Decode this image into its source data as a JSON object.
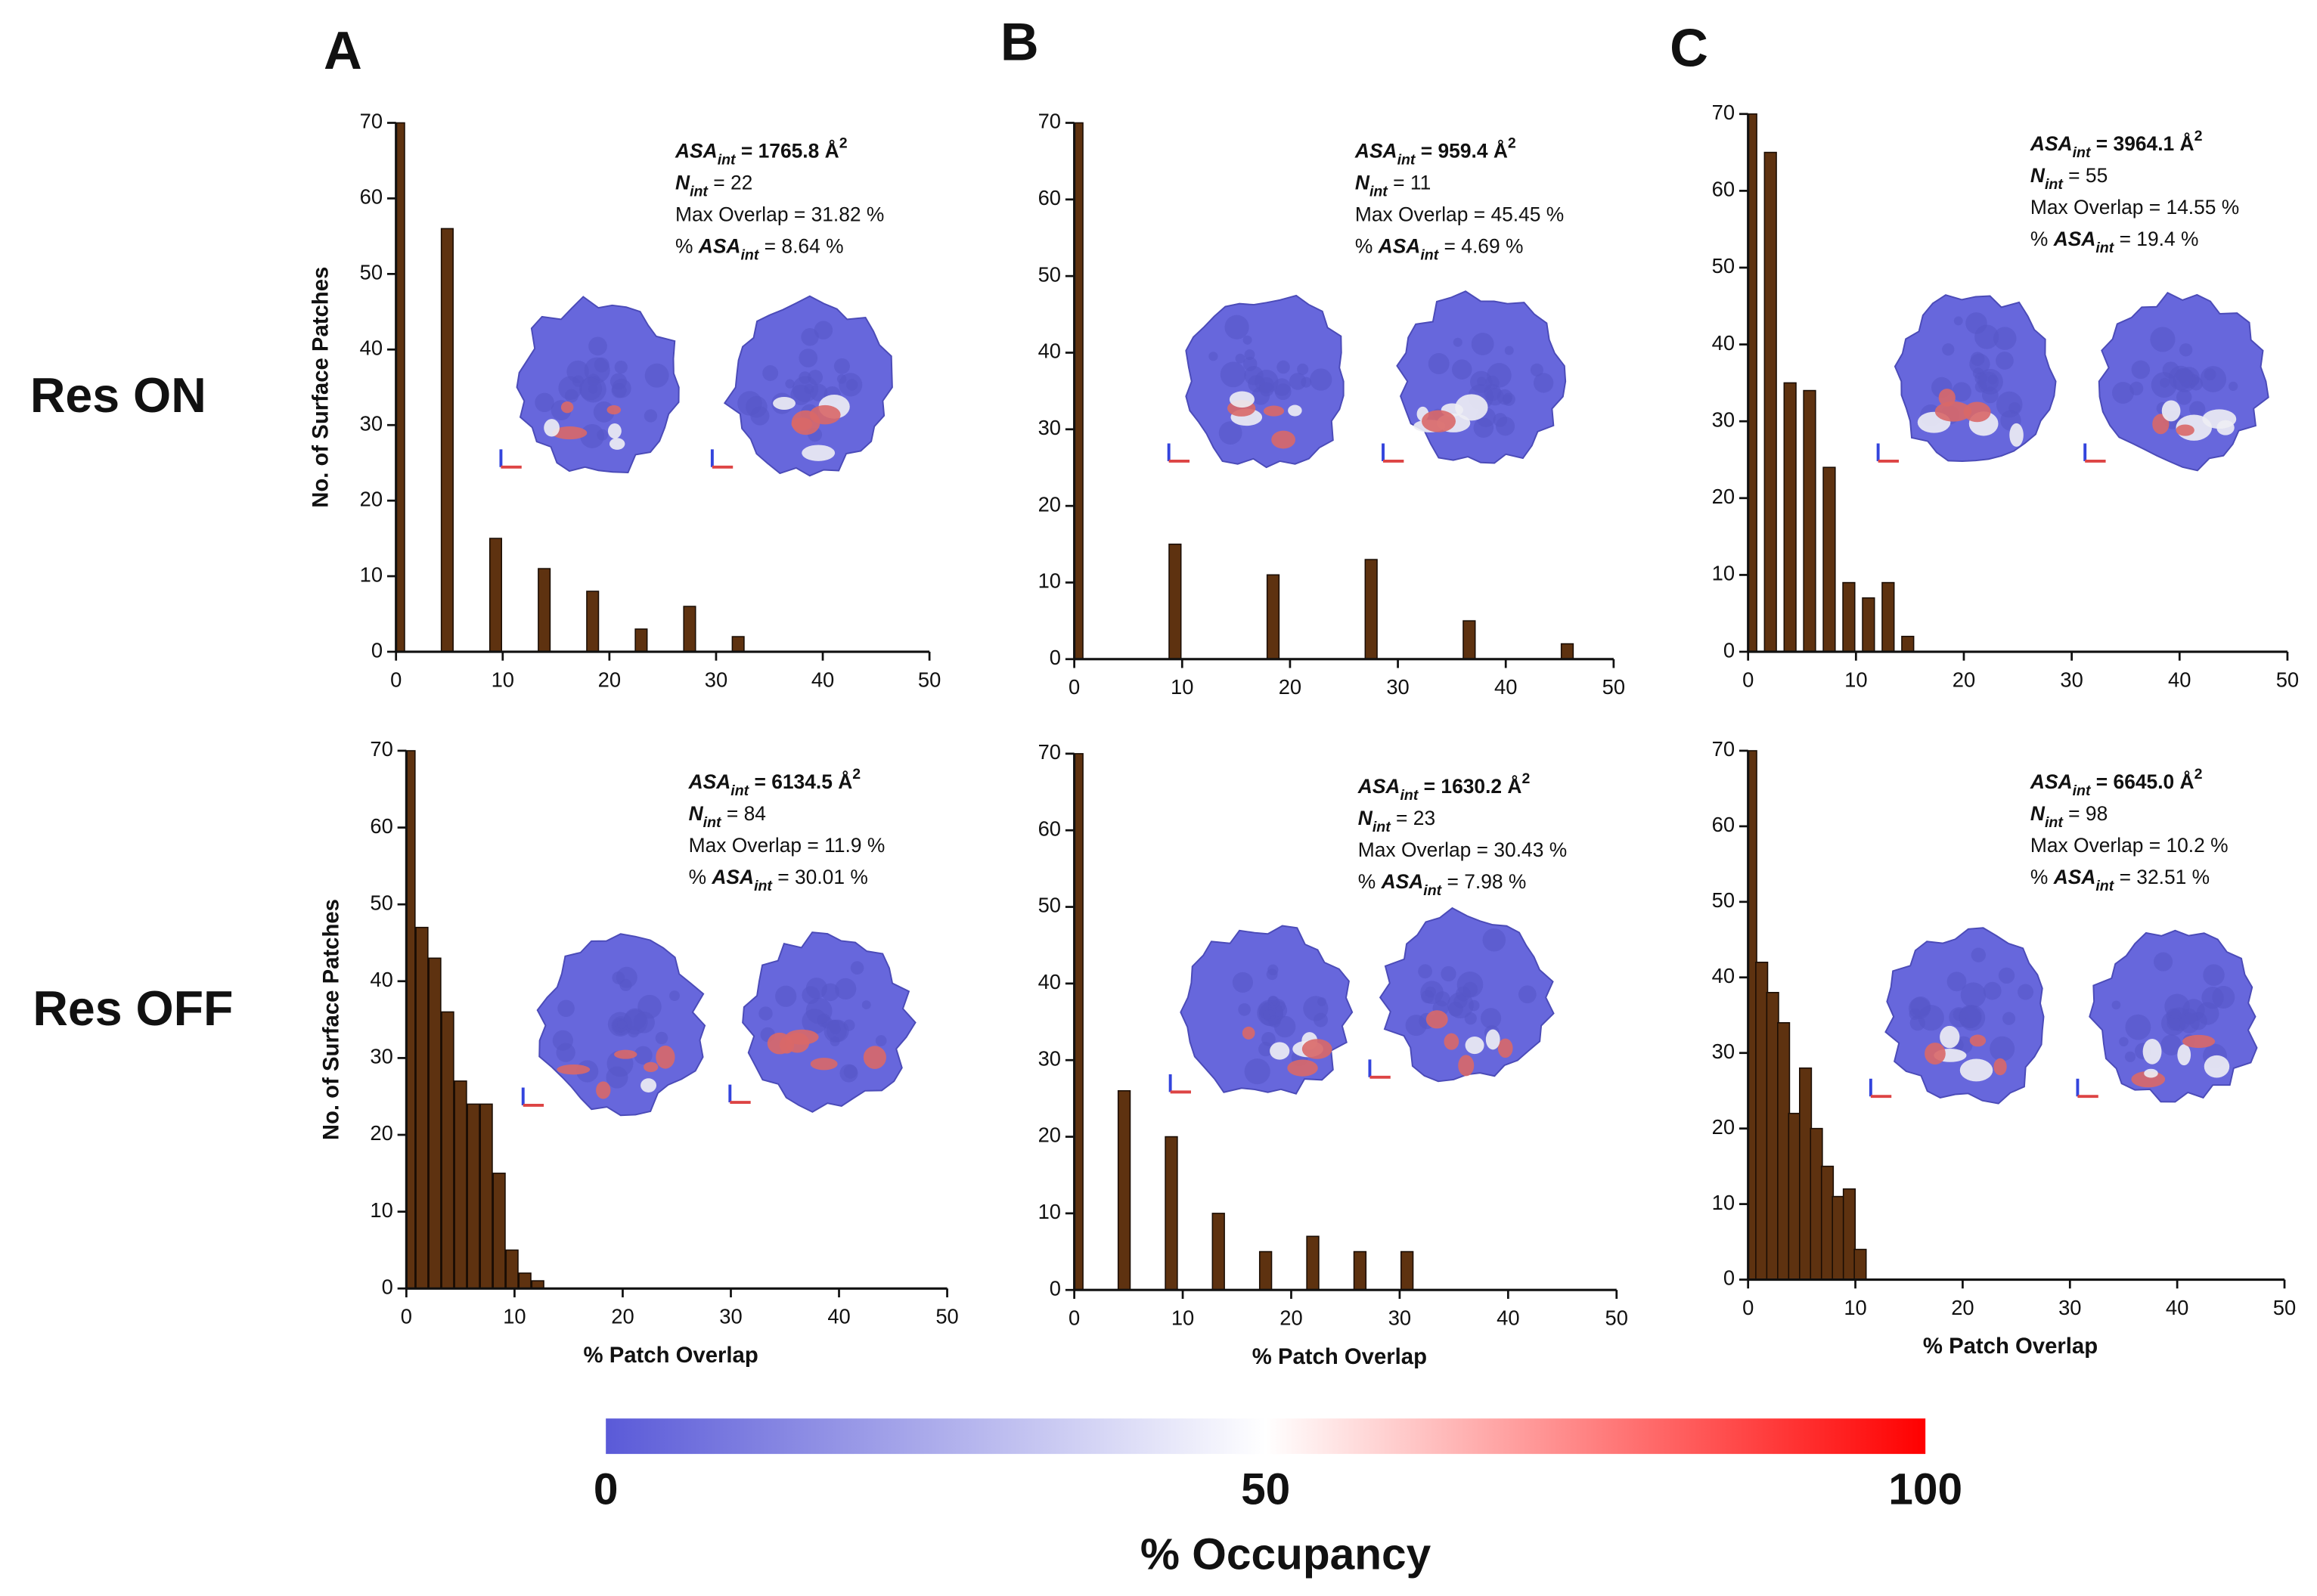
{
  "panel_labels": [
    "A",
    "B",
    "C"
  ],
  "row_labels": [
    "Res ON",
    "Res OFF"
  ],
  "chart_data": [
    {
      "type": "bar",
      "x": [
        0,
        4.55,
        9.09,
        13.64,
        18.18,
        22.73,
        27.27,
        31.82
      ],
      "values": [
        70,
        56,
        15,
        11,
        8,
        3,
        6,
        2
      ],
      "color": "#5e3210",
      "xlim": [
        0,
        50
      ],
      "ylim": [
        0,
        70
      ],
      "xticks": [
        0,
        10,
        20,
        30,
        40,
        50
      ],
      "yticks": [
        0,
        10,
        20,
        30,
        40,
        50,
        60,
        70
      ],
      "ylabel": "No. of Surface Patches",
      "annotation": [
        [
          {
            "text": "ASA",
            "italic": true
          },
          {
            "text": "int",
            "sub": true,
            "italic": true
          },
          {
            "text": " = 1765.8 "
          },
          {
            "text": "Å"
          },
          {
            "text": "2",
            "sup": true
          }
        ],
        [
          {
            "text": "N",
            "italic": true
          },
          {
            "text": "int",
            "sub": true,
            "italic": true
          },
          {
            "text": " = 22",
            "plain": true
          }
        ],
        [
          {
            "text": "Max Overlap = 31.82 %",
            "plain": true
          }
        ],
        [
          {
            "text": "% ",
            "plain": true
          },
          {
            "text": "ASA",
            "italic": true
          },
          {
            "text": "int",
            "sub": true,
            "italic": true
          },
          {
            "text": " = 8.64 %",
            "plain": true
          }
        ]
      ]
    },
    {
      "type": "bar",
      "x": [
        0,
        9.09,
        18.18,
        27.27,
        36.36,
        45.45
      ],
      "values": [
        70,
        15,
        11,
        13,
        5,
        2
      ],
      "color": "#5e3210",
      "xlim": [
        0,
        50
      ],
      "ylim": [
        0,
        70
      ],
      "xticks": [
        0,
        10,
        20,
        30,
        40,
        50
      ],
      "yticks": [
        0,
        10,
        20,
        30,
        40,
        50,
        60,
        70
      ],
      "annotation": [
        [
          {
            "text": "ASA",
            "italic": true
          },
          {
            "text": "int",
            "sub": true,
            "italic": true
          },
          {
            "text": " = 959.4 "
          },
          {
            "text": "Å"
          },
          {
            "text": "2",
            "sup": true
          }
        ],
        [
          {
            "text": "N",
            "italic": true
          },
          {
            "text": "int",
            "sub": true,
            "italic": true
          },
          {
            "text": " = 11",
            "plain": true
          }
        ],
        [
          {
            "text": "Max Overlap = 45.45 %",
            "plain": true
          }
        ],
        [
          {
            "text": "% ",
            "plain": true
          },
          {
            "text": "ASA",
            "italic": true
          },
          {
            "text": "int",
            "sub": true,
            "italic": true
          },
          {
            "text": " = 4.69 %",
            "plain": true
          }
        ]
      ]
    },
    {
      "type": "bar",
      "x": [
        0,
        1.82,
        3.64,
        5.45,
        7.27,
        9.09,
        10.91,
        12.73,
        14.55
      ],
      "values": [
        70,
        65,
        35,
        34,
        24,
        9,
        7,
        9,
        2
      ],
      "color": "#5e3210",
      "xlim": [
        0,
        50
      ],
      "ylim": [
        0,
        70
      ],
      "xticks": [
        0,
        10,
        20,
        30,
        40,
        50
      ],
      "yticks": [
        0,
        10,
        20,
        30,
        40,
        50,
        60,
        70
      ],
      "annotation": [
        [
          {
            "text": "ASA",
            "italic": true
          },
          {
            "text": "int",
            "sub": true,
            "italic": true
          },
          {
            "text": " = 3964.1 "
          },
          {
            "text": "Å"
          },
          {
            "text": "2",
            "sup": true
          }
        ],
        [
          {
            "text": "N",
            "italic": true
          },
          {
            "text": "int",
            "sub": true,
            "italic": true
          },
          {
            "text": " = 55",
            "plain": true
          }
        ],
        [
          {
            "text": "Max Overlap = 14.55 %",
            "plain": true
          }
        ],
        [
          {
            "text": "% ",
            "plain": true
          },
          {
            "text": "ASA",
            "italic": true
          },
          {
            "text": "int",
            "sub": true,
            "italic": true
          },
          {
            "text": " = 19.4 %",
            "plain": true
          }
        ]
      ]
    },
    {
      "type": "bar",
      "x": [
        0,
        1.19,
        2.38,
        3.57,
        4.76,
        5.95,
        7.14,
        8.33,
        9.52,
        10.71,
        11.9
      ],
      "values": [
        70,
        47,
        43,
        36,
        27,
        24,
        24,
        15,
        5,
        2,
        1
      ],
      "color": "#5e3210",
      "xlim": [
        0,
        50
      ],
      "ylim": [
        0,
        70
      ],
      "xticks": [
        0,
        10,
        20,
        30,
        40,
        50
      ],
      "yticks": [
        0,
        10,
        20,
        30,
        40,
        50,
        60,
        70
      ],
      "ylabel": "No. of Surface Patches",
      "xlabel": "% Patch Overlap",
      "annotation": [
        [
          {
            "text": "ASA",
            "italic": true
          },
          {
            "text": "int",
            "sub": true,
            "italic": true
          },
          {
            "text": " = 6134.5 "
          },
          {
            "text": "Å"
          },
          {
            "text": "2",
            "sup": true
          }
        ],
        [
          {
            "text": "N",
            "italic": true
          },
          {
            "text": "int",
            "sub": true,
            "italic": true
          },
          {
            "text": " = 84",
            "plain": true
          }
        ],
        [
          {
            "text": "Max Overlap = 11.9 %",
            "plain": true
          }
        ],
        [
          {
            "text": "% ",
            "plain": true
          },
          {
            "text": "ASA",
            "italic": true
          },
          {
            "text": "int",
            "sub": true,
            "italic": true
          },
          {
            "text": " = 30.01 %",
            "plain": true
          }
        ]
      ]
    },
    {
      "type": "bar",
      "x": [
        0,
        4.35,
        8.7,
        13.04,
        17.39,
        21.74,
        26.09,
        30.43
      ],
      "values": [
        70,
        26,
        20,
        10,
        5,
        7,
        5,
        5
      ],
      "color": "#5e3210",
      "xlim": [
        0,
        50
      ],
      "ylim": [
        0,
        70
      ],
      "xticks": [
        0,
        10,
        20,
        30,
        40,
        50
      ],
      "yticks": [
        0,
        10,
        20,
        30,
        40,
        50,
        60,
        70
      ],
      "xlabel": "% Patch Overlap",
      "annotation": [
        [
          {
            "text": "ASA",
            "italic": true
          },
          {
            "text": "int",
            "sub": true,
            "italic": true
          },
          {
            "text": " = 1630.2 "
          },
          {
            "text": "Å"
          },
          {
            "text": "2",
            "sup": true
          }
        ],
        [
          {
            "text": "N",
            "italic": true
          },
          {
            "text": "int",
            "sub": true,
            "italic": true
          },
          {
            "text": " = 23",
            "plain": true
          }
        ],
        [
          {
            "text": "Max Overlap = 30.43 %",
            "plain": true
          }
        ],
        [
          {
            "text": "% ",
            "plain": true
          },
          {
            "text": "ASA",
            "italic": true
          },
          {
            "text": "int",
            "sub": true,
            "italic": true
          },
          {
            "text": " = 7.98 %",
            "plain": true
          }
        ]
      ]
    },
    {
      "type": "bar",
      "x": [
        0,
        1.02,
        2.04,
        3.06,
        4.08,
        5.1,
        6.12,
        7.14,
        8.16,
        9.18,
        10.2
      ],
      "values": [
        70,
        42,
        38,
        34,
        22,
        28,
        20,
        15,
        11,
        12,
        4
      ],
      "color": "#5e3210",
      "xlim": [
        0,
        50
      ],
      "ylim": [
        0,
        70
      ],
      "xticks": [
        0,
        10,
        20,
        30,
        40,
        50
      ],
      "yticks": [
        0,
        10,
        20,
        30,
        40,
        50,
        60,
        70
      ],
      "xlabel": "% Patch Overlap",
      "annotation": [
        [
          {
            "text": "ASA",
            "italic": true
          },
          {
            "text": "int",
            "sub": true,
            "italic": true
          },
          {
            "text": " = 6645.0 "
          },
          {
            "text": "Å"
          },
          {
            "text": "2",
            "sup": true
          }
        ],
        [
          {
            "text": "N",
            "italic": true
          },
          {
            "text": "int",
            "sub": true,
            "italic": true
          },
          {
            "text": " = 98",
            "plain": true
          }
        ],
        [
          {
            "text": "Max Overlap = 10.2 %",
            "plain": true
          }
        ],
        [
          {
            "text": "% ",
            "plain": true
          },
          {
            "text": "ASA",
            "italic": true
          },
          {
            "text": "int",
            "sub": true,
            "italic": true
          },
          {
            "text": " = 32.51 %",
            "plain": true
          }
        ]
      ]
    }
  ],
  "colorbar": {
    "ticks": [
      0,
      50,
      100
    ],
    "label": "% Occupancy",
    "colors": [
      "#5a5ad8",
      "#ffffff",
      "#ff0000"
    ]
  }
}
